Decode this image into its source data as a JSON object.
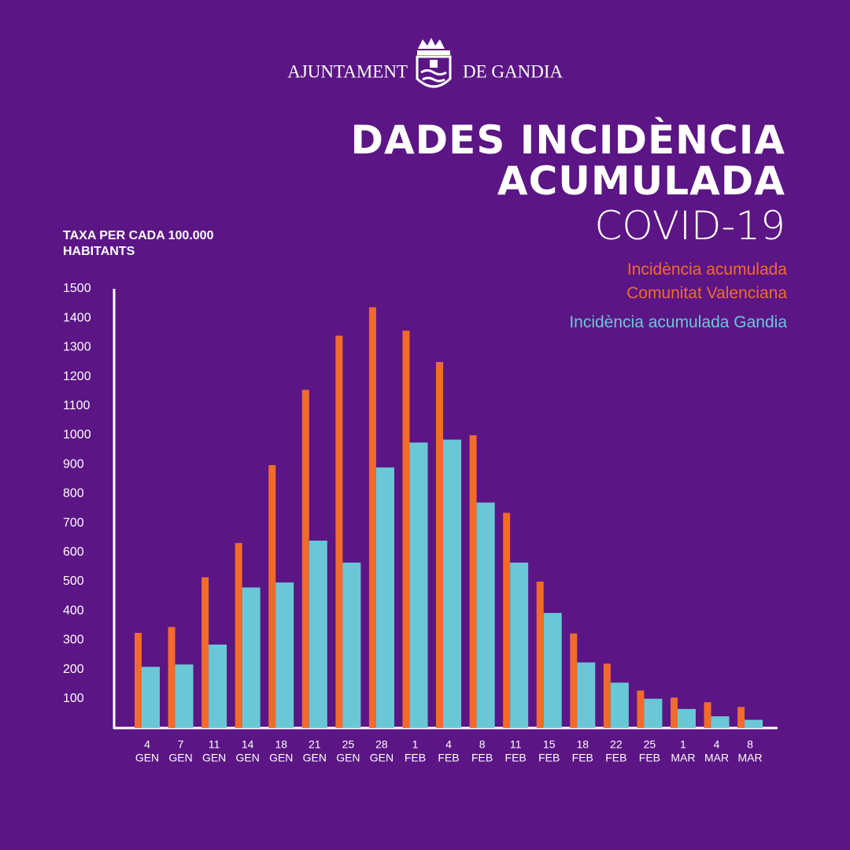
{
  "header": {
    "left": "AJUNTAMENT",
    "right": "DE GANDIA"
  },
  "chart_data": {
    "type": "bar",
    "title": "DADES INCIDÈNCIA ACUMULADA",
    "subtitle": "COVID-19",
    "y_label": "TAXA PER CADA 100.000 HABITANTS",
    "categories": [
      [
        "4",
        "GEN"
      ],
      [
        "7",
        "GEN"
      ],
      [
        "11",
        "GEN"
      ],
      [
        "14",
        "GEN"
      ],
      [
        "18",
        "GEN"
      ],
      [
        "21",
        "GEN"
      ],
      [
        "25",
        "GEN"
      ],
      [
        "28",
        "GEN"
      ],
      [
        "1",
        "FEB"
      ],
      [
        "4",
        "FEB"
      ],
      [
        "8",
        "FEB"
      ],
      [
        "11",
        "FEB"
      ],
      [
        "15",
        "FEB"
      ],
      [
        "18",
        "FEB"
      ],
      [
        "22",
        "FEB"
      ],
      [
        "25",
        "FEB"
      ],
      [
        "1",
        "MAR"
      ],
      [
        "4",
        "MAR"
      ],
      [
        "8",
        "MAR"
      ]
    ],
    "series": [
      {
        "name": "Incidència acumulada Comunitat Valenciana",
        "color": "#f26b2a",
        "values": [
          325,
          345,
          515,
          632,
          898,
          1155,
          1340,
          1437,
          1357,
          1250,
          1000,
          735,
          500,
          323,
          220,
          128,
          104,
          88,
          72
        ]
      },
      {
        "name": "Incidència acumulada Gandia",
        "color": "#6ac8d6",
        "values": [
          209,
          217,
          285,
          480,
          497,
          640,
          565,
          890,
          975,
          985,
          770,
          565,
          393,
          224,
          155,
          100,
          65,
          40,
          28
        ]
      }
    ],
    "ylim": [
      0,
      1500
    ],
    "yticks": [
      100,
      200,
      300,
      400,
      500,
      600,
      700,
      800,
      900,
      1000,
      1100,
      1200,
      1300,
      1400,
      1500
    ],
    "grid": false
  }
}
